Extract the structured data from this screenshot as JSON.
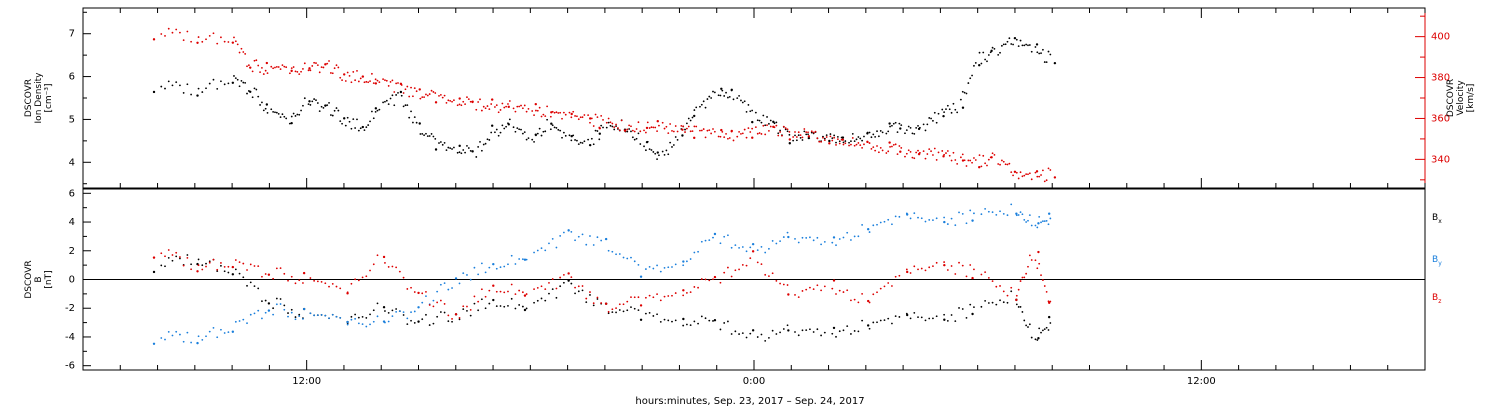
{
  "chart_data": [
    {
      "type": "scatter",
      "ylabel": "DSCOVR\nIon Density\n[cm⁻³]",
      "y2label": "DSCOVR\nVelocity\n[km/s]",
      "ylim": [
        3.4,
        7.6
      ],
      "yticks": [
        4,
        5,
        6,
        7
      ],
      "y2lim": [
        326,
        414
      ],
      "y2ticks": [
        340,
        360,
        380,
        400
      ],
      "grid": false,
      "series": [
        {
          "name": "Ion Density",
          "axis": "left",
          "color": "#000000",
          "x": [
            -4.0,
            -3.0,
            -2.0,
            -1.5,
            -1.0,
            -0.5,
            0.0,
            0.5,
            1.0,
            1.5,
            2.0,
            2.5,
            3.0,
            3.5,
            4.0,
            4.5,
            5.0,
            5.5,
            6.0,
            6.5,
            7.0,
            7.5,
            8.0,
            8.5,
            9.0,
            9.5,
            10.0,
            10.5,
            11.0,
            11.5,
            12.0,
            12.5,
            13.0,
            13.5,
            14.0,
            14.5,
            15.0,
            15.5,
            16.0,
            16.5,
            17.0,
            17.5,
            18.0,
            18.5,
            19.0,
            19.5,
            20.0
          ],
          "y": [
            5.8,
            5.7,
            5.9,
            5.7,
            5.2,
            4.9,
            5.4,
            5.3,
            5.0,
            4.8,
            5.3,
            5.5,
            4.8,
            4.4,
            4.3,
            4.2,
            4.7,
            4.9,
            4.5,
            4.9,
            4.6,
            4.4,
            4.8,
            4.9,
            4.5,
            4.1,
            4.6,
            5.2,
            5.7,
            5.6,
            5.1,
            4.9,
            4.6,
            4.6,
            4.6,
            4.5,
            4.6,
            4.8,
            4.8,
            4.8,
            5.1,
            5.3,
            6.4,
            6.6,
            6.9,
            6.6,
            6.4
          ]
        },
        {
          "name": "Velocity",
          "axis": "right",
          "color": "#dd0000",
          "x": [
            -4.0,
            -3.0,
            -2.0,
            -1.5,
            -1.0,
            -0.5,
            0.0,
            0.5,
            1.0,
            1.5,
            2.0,
            2.5,
            3.0,
            3.5,
            4.0,
            4.5,
            5.0,
            5.5,
            6.0,
            6.5,
            7.0,
            7.5,
            8.0,
            8.5,
            9.0,
            9.5,
            10.0,
            10.5,
            11.0,
            11.5,
            12.0,
            12.5,
            13.0,
            13.5,
            14.0,
            14.5,
            15.0,
            15.5,
            16.0,
            16.5,
            17.0,
            17.5,
            18.0,
            18.5,
            19.0,
            19.5,
            20.0
          ],
          "y": [
            402,
            400,
            398,
            386,
            384,
            383,
            384,
            386,
            381,
            380,
            378,
            374,
            372,
            370,
            368,
            367,
            366,
            366,
            364,
            363,
            362,
            360,
            358,
            357,
            356,
            356,
            354,
            353,
            354,
            352,
            354,
            355,
            353,
            352,
            350,
            348,
            347,
            346,
            344,
            343,
            342,
            340,
            339,
            341,
            334,
            331,
            333
          ]
        }
      ]
    },
    {
      "type": "scatter",
      "ylabel": "DSCOVR\nB\n[nT]",
      "ylim": [
        -6.3,
        6.3
      ],
      "yticks": [
        -6,
        -4,
        -2,
        0,
        2,
        4,
        6
      ],
      "zero_line": true,
      "grid": false,
      "legend_position": "right",
      "legend": [
        {
          "label": "B",
          "sub": "x",
          "color": "#000000"
        },
        {
          "label": "B",
          "sub": "y",
          "color": "#1a7fdc"
        },
        {
          "label": "B",
          "sub": "z",
          "color": "#dd0000"
        }
      ],
      "series": [
        {
          "name": "Bx",
          "color": "#000000",
          "x": [
            -4.0,
            -3.0,
            -2.0,
            -1.0,
            0.0,
            1.0,
            2.0,
            3.0,
            4.0,
            5.0,
            6.0,
            7.0,
            8.0,
            9.0,
            10.0,
            11.0,
            12.0,
            13.0,
            14.0,
            15.0,
            16.0,
            17.0,
            18.0,
            19.0,
            19.5,
            20.0
          ],
          "y": [
            1.0,
            1.5,
            0.5,
            -1.5,
            -2.5,
            -3.0,
            -2.0,
            -3.0,
            -2.5,
            -1.5,
            -2.0,
            -0.5,
            -2.0,
            -2.5,
            -3.0,
            -3.0,
            -4.0,
            -3.5,
            -3.8,
            -3.2,
            -2.5,
            -2.8,
            -2.0,
            -1.0,
            -4.0,
            -3.0
          ]
        },
        {
          "name": "By",
          "color": "#1a7fdc",
          "x": [
            -4.0,
            -3.0,
            -2.0,
            -1.0,
            0.0,
            1.0,
            2.0,
            3.0,
            4.0,
            5.0,
            6.0,
            7.0,
            8.0,
            9.0,
            10.0,
            11.0,
            12.0,
            13.0,
            14.0,
            15.0,
            16.0,
            17.0,
            18.0,
            19.0,
            19.5,
            20.0
          ],
          "y": [
            -4.0,
            -4.0,
            -3.5,
            -2.0,
            -2.5,
            -3.0,
            -3.0,
            -2.0,
            0.0,
            1.0,
            1.5,
            3.0,
            2.5,
            0.5,
            1.0,
            3.0,
            2.0,
            3.0,
            2.5,
            3.5,
            4.5,
            4.0,
            4.5,
            5.0,
            4.0,
            4.2
          ]
        },
        {
          "name": "Bz",
          "color": "#dd0000",
          "x": [
            -4.0,
            -3.0,
            -2.0,
            -1.0,
            0.0,
            1.0,
            2.0,
            3.0,
            4.0,
            5.0,
            6.0,
            7.0,
            8.0,
            9.0,
            10.0,
            11.0,
            12.0,
            13.0,
            14.0,
            15.0,
            16.0,
            17.0,
            18.0,
            19.0,
            19.5,
            20.0
          ],
          "y": [
            2.0,
            1.0,
            1.0,
            0.5,
            0.0,
            -1.0,
            1.5,
            -1.0,
            -2.5,
            -0.5,
            -1.0,
            0.0,
            -2.0,
            -1.5,
            -1.0,
            0.0,
            1.5,
            -1.0,
            -0.5,
            -1.5,
            0.5,
            1.0,
            0.5,
            -1.0,
            2.0,
            -2.0
          ]
        }
      ]
    }
  ],
  "x_axis": {
    "title": "hours:minutes, Sep. 23, 2017 – Sep. 24, 2017",
    "range": [
      -6,
      30
    ],
    "tick_labels": [
      {
        "x": 0,
        "label": "12:00"
      },
      {
        "x": 12,
        "label": "0:00"
      },
      {
        "x": 24,
        "label": "12:00"
      }
    ]
  }
}
